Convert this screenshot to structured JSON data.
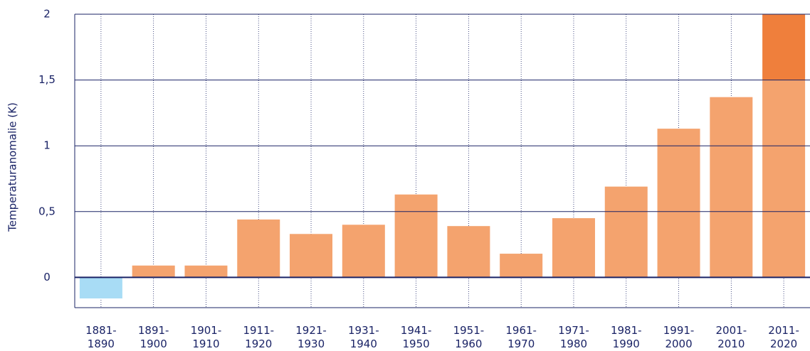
{
  "chart_data": {
    "type": "stacked_bar",
    "y_label": "Temperaturanomalie (K)",
    "categories": [
      "1881-1890",
      "1891-1900",
      "1901-1910",
      "1911-1920",
      "1921-1930",
      "1931-1940",
      "1941-1950",
      "1951-1960",
      "1961-1970",
      "1971-1980",
      "1981-1990",
      "1991-2000",
      "2001-2010",
      "2011-2020"
    ],
    "series": [
      {
        "color": "#f4a36e",
        "negative_color": "#a8dcf5",
        "values": [
          -0.16,
          0.09,
          0.09,
          0.44,
          0.33,
          0.4,
          0.63,
          0.39,
          0.18,
          0.45,
          0.69,
          1.13,
          1.37,
          1.5
        ]
      },
      {
        "color": "#ef7f3c",
        "values": [
          null,
          null,
          null,
          null,
          null,
          null,
          null,
          null,
          null,
          null,
          null,
          null,
          null,
          0.5
        ]
      }
    ],
    "ylim": [
      -0.23,
      2
    ],
    "yticks": [
      0,
      {
        "value": 0.5,
        "label": "0,5"
      },
      1,
      {
        "value": 1.5,
        "label": "1,5"
      },
      2
    ],
    "grid": true
  }
}
